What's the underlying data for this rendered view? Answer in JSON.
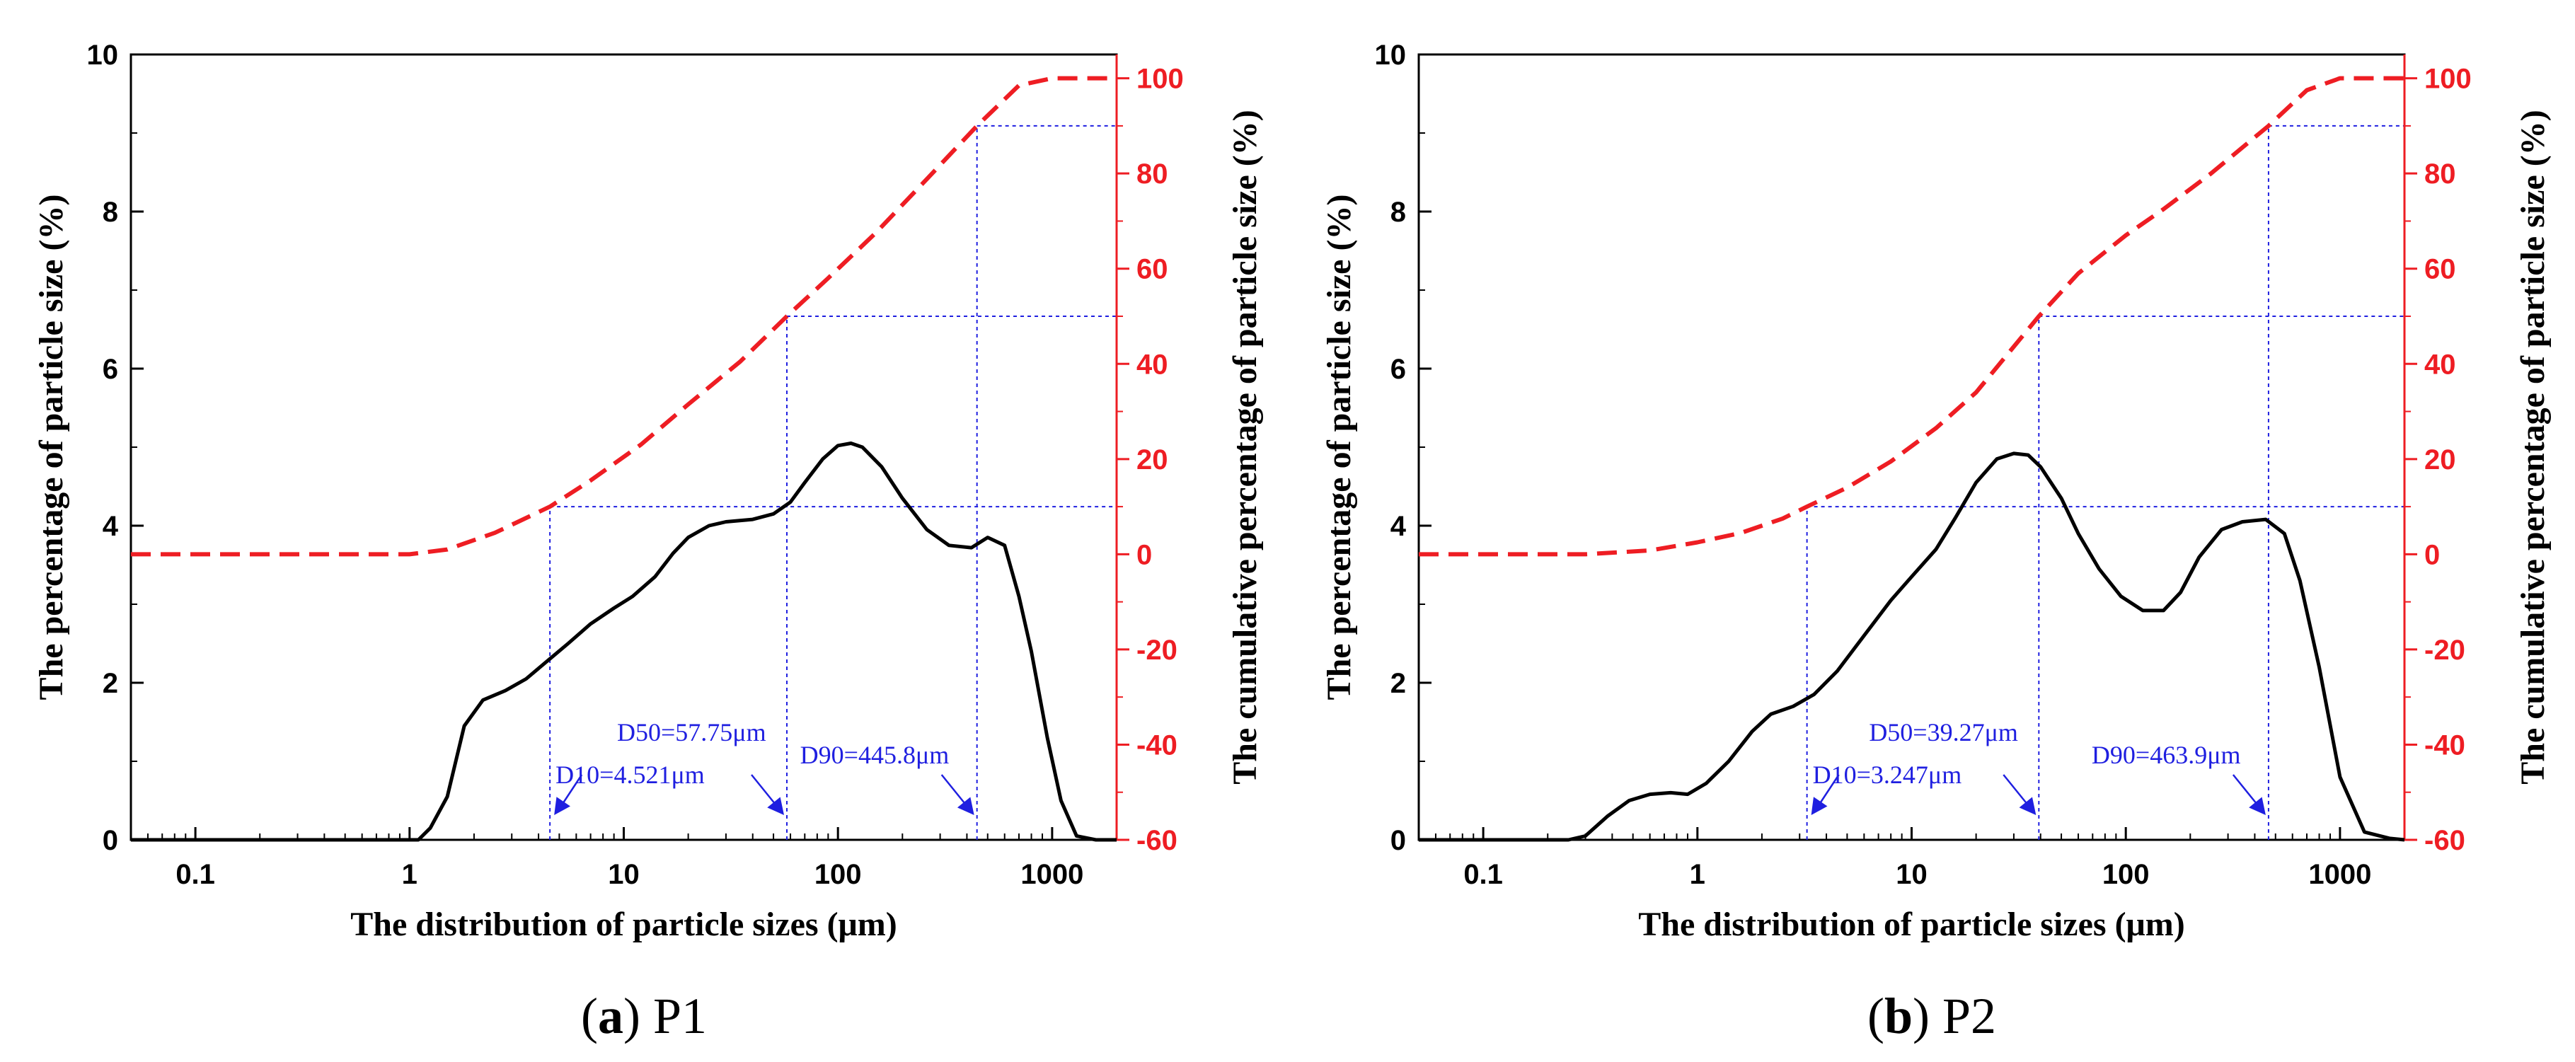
{
  "chart_data": [
    {
      "type": "line",
      "panel_letter": "a",
      "panel_name": "P1",
      "xscale": "log",
      "xlim": [
        0.05,
        2000
      ],
      "ylim": [
        0,
        10
      ],
      "y2lim": [
        -60,
        105
      ],
      "xlabel": "The distribution of particle sizes (μm)",
      "ylabel": "The percentage of particle size (%)",
      "y2label": "The cumulative percentage of particle size (%)",
      "xticks": [
        0.1,
        1,
        10,
        100,
        1000
      ],
      "xtick_labels": [
        "0.1",
        "1",
        "10",
        "100",
        "1000"
      ],
      "yticks": [
        0,
        2,
        4,
        6,
        8,
        10
      ],
      "ytick_labels": [
        "0",
        "2",
        "4",
        "6",
        "8",
        "10"
      ],
      "y2ticks": [
        -60,
        -40,
        -20,
        0,
        20,
        40,
        60,
        80,
        100
      ],
      "y2tick_labels": [
        "-60",
        "-40",
        "-20",
        "0",
        "20",
        "40",
        "60",
        "80",
        "100"
      ],
      "series": [
        {
          "name": "Percentage",
          "axis": "left",
          "color": "#000000",
          "style": "solid",
          "x": [
            0.05,
            1.1,
            1.25,
            1.5,
            1.8,
            2.2,
            2.8,
            3.5,
            4.5,
            5.5,
            7,
            9,
            11,
            14,
            17,
            20,
            25,
            30,
            40,
            50,
            60,
            70,
            85,
            100,
            115,
            130,
            160,
            200,
            260,
            330,
            420,
            500,
            600,
            700,
            800,
            950,
            1100,
            1300,
            1600,
            2000
          ],
          "y": [
            0,
            0,
            0.15,
            0.55,
            1.45,
            1.78,
            1.9,
            2.05,
            2.3,
            2.5,
            2.75,
            2.95,
            3.1,
            3.35,
            3.65,
            3.85,
            4.0,
            4.05,
            4.08,
            4.15,
            4.3,
            4.55,
            4.85,
            5.02,
            5.05,
            5.0,
            4.75,
            4.35,
            3.95,
            3.75,
            3.72,
            3.85,
            3.75,
            3.1,
            2.4,
            1.3,
            0.5,
            0.05,
            0.0,
            0.0
          ]
        },
        {
          "name": "Cumulative",
          "axis": "right",
          "color": "#ee1d23",
          "style": "dashed",
          "x": [
            0.05,
            1,
            1.5,
            2.5,
            4.521,
            7,
            12,
            20,
            35,
            57.75,
            90,
            150,
            250,
            445.8,
            700,
            1000,
            2000
          ],
          "y": [
            0,
            0,
            1,
            4.5,
            10,
            15.5,
            23,
            31.5,
            40.5,
            50,
            58,
            67.5,
            78,
            90,
            98.5,
            100,
            100
          ]
        }
      ],
      "markers": [
        {
          "label": "D10=4.521μm",
          "x": 4.521,
          "cum": 10
        },
        {
          "label": "D50=57.75μm",
          "x": 57.75,
          "cum": 50
        },
        {
          "label": "D90=445.8μm",
          "x": 445.8,
          "cum": 90
        }
      ]
    },
    {
      "type": "line",
      "panel_letter": "b",
      "panel_name": "P2",
      "xscale": "log",
      "xlim": [
        0.05,
        2000
      ],
      "ylim": [
        0,
        10
      ],
      "y2lim": [
        -60,
        105
      ],
      "xlabel": "The distribution of particle sizes (μm)",
      "ylabel": "The percentage of particle size (%)",
      "y2label": "The cumulative percentage of particle size (%)",
      "xticks": [
        0.1,
        1,
        10,
        100,
        1000
      ],
      "xtick_labels": [
        "0.1",
        "1",
        "10",
        "100",
        "1000"
      ],
      "yticks": [
        0,
        2,
        4,
        6,
        8,
        10
      ],
      "ytick_labels": [
        "0",
        "2",
        "4",
        "6",
        "8",
        "10"
      ],
      "y2ticks": [
        -60,
        -40,
        -20,
        0,
        20,
        40,
        60,
        80,
        100
      ],
      "y2tick_labels": [
        "-60",
        "-40",
        "-20",
        "0",
        "20",
        "40",
        "60",
        "80",
        "100"
      ],
      "series": [
        {
          "name": "Percentage",
          "axis": "left",
          "color": "#000000",
          "style": "solid",
          "x": [
            0.05,
            0.25,
            0.3,
            0.38,
            0.48,
            0.6,
            0.75,
            0.9,
            1.1,
            1.4,
            1.8,
            2.2,
            2.8,
            3.5,
            4.5,
            6,
            8,
            10,
            13,
            16,
            20,
            25,
            30,
            35,
            40,
            50,
            60,
            75,
            95,
            120,
            150,
            180,
            220,
            280,
            350,
            450,
            550,
            650,
            800,
            1000,
            1300,
            1700,
            2000
          ],
          "y": [
            0,
            0,
            0.05,
            0.3,
            0.5,
            0.58,
            0.6,
            0.58,
            0.72,
            1.0,
            1.38,
            1.6,
            1.7,
            1.85,
            2.15,
            2.6,
            3.05,
            3.35,
            3.7,
            4.1,
            4.55,
            4.85,
            4.92,
            4.9,
            4.75,
            4.35,
            3.9,
            3.45,
            3.1,
            2.92,
            2.92,
            3.15,
            3.6,
            3.95,
            4.05,
            4.08,
            3.9,
            3.3,
            2.2,
            0.8,
            0.1,
            0.02,
            0.0
          ]
        },
        {
          "name": "Cumulative",
          "axis": "right",
          "color": "#ee1d23",
          "style": "dashed",
          "x": [
            0.05,
            0.3,
            0.6,
            1,
            1.6,
            2.5,
            3.247,
            5,
            8,
            13,
            20,
            39.27,
            60,
            100,
            150,
            250,
            463.9,
            700,
            1000,
            2000
          ],
          "y": [
            0,
            0,
            0.8,
            2.5,
            4.5,
            7.5,
            10,
            14,
            19.5,
            26.5,
            34,
            50,
            59,
            67,
            72.5,
            80,
            90,
            97.5,
            100,
            100
          ]
        }
      ],
      "markers": [
        {
          "label": "D10=3.247μm",
          "x": 3.247,
          "cum": 10
        },
        {
          "label": "D50=39.27μm",
          "x": 39.27,
          "cum": 50
        },
        {
          "label": "D90=463.9μm",
          "x": 463.9,
          "cum": 90
        }
      ]
    }
  ]
}
